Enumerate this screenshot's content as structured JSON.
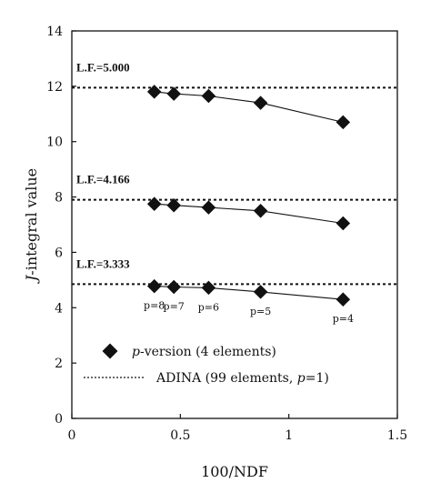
{
  "chart_data": {
    "type": "scatter",
    "xlabel": "100/NDF",
    "ylabel_italic": "J",
    "ylabel_rest": "-integral value",
    "xlim": [
      0,
      1.5
    ],
    "ylim": [
      0,
      14
    ],
    "x_ticks": [
      "0",
      "0.5",
      "1",
      "1.5"
    ],
    "y_ticks": [
      "0",
      "2",
      "4",
      "6",
      "8",
      "10",
      "12",
      "14"
    ],
    "x_tick_values": [
      0,
      0.5,
      1,
      1.5
    ],
    "y_tick_values": [
      0,
      2,
      4,
      6,
      8,
      10,
      12,
      14
    ],
    "x": [
      0.38,
      0.47,
      0.63,
      0.87,
      1.25
    ],
    "series": [
      {
        "lf_label": "L.F.=5.000",
        "adina": 11.95,
        "values": [
          11.8,
          11.73,
          11.65,
          11.4,
          10.7
        ]
      },
      {
        "lf_label": "L.F.=4.166",
        "adina": 7.9,
        "values": [
          7.75,
          7.7,
          7.62,
          7.5,
          7.05
        ]
      },
      {
        "lf_label": "L.F.=3.333",
        "adina": 4.85,
        "values": [
          4.78,
          4.75,
          4.72,
          4.57,
          4.3
        ]
      }
    ],
    "p_labels": [
      "p=8",
      "p=7",
      "p=6",
      "p=5",
      "p=4"
    ],
    "legend": [
      {
        "italic": "p",
        "text": "-version (4 elements)"
      },
      {
        "text_before": "ADINA (99 elements, ",
        "italic": "p",
        "text_after": "=1)"
      }
    ]
  }
}
